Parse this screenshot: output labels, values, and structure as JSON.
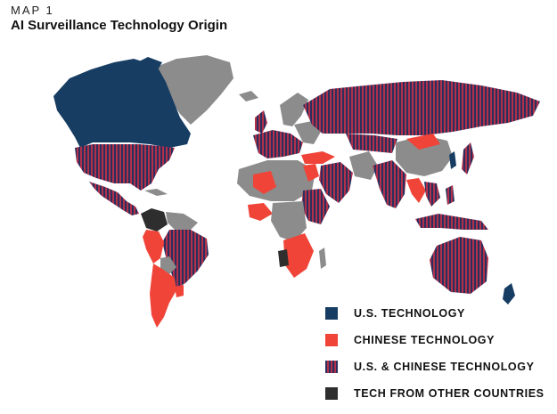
{
  "header": {
    "kicker": "MAP 1",
    "title": "AI Surveillance Technology Origin"
  },
  "colors": {
    "us": "#173d63",
    "chinese": "#f04438",
    "both_stripe_a": "#b1304a",
    "both_stripe_b": "#2b2f5e",
    "other": "#2e2e2e",
    "no_data": "#8c8c8c"
  },
  "legend": [
    {
      "key": "us",
      "label": "U.S. TECHNOLOGY"
    },
    {
      "key": "chinese",
      "label": "CHINESE TECHNOLOGY"
    },
    {
      "key": "both",
      "label": "U.S. & CHINESE TECHNOLOGY"
    },
    {
      "key": "other",
      "label": "TECH FROM OTHER COUNTRIES"
    }
  ]
}
